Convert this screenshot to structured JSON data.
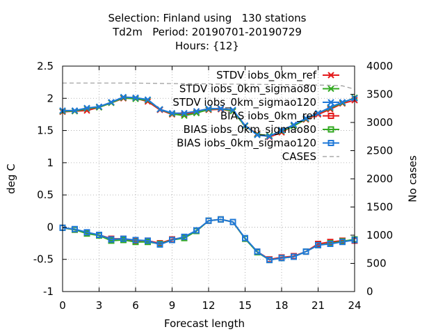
{
  "chart_data": {
    "type": "line",
    "title_lines": [
      "Selection: Finland using   130 stations",
      "Td2m   Period: 20190701-20190729",
      "Hours: {12}"
    ],
    "xlabel": "Forecast length",
    "ylabel": "deg C",
    "y2label": "No cases",
    "xlim": [
      0,
      24
    ],
    "ylim": [
      -1,
      2.5
    ],
    "y2lim": [
      0,
      4000
    ],
    "xticks": [
      0,
      3,
      6,
      9,
      12,
      15,
      18,
      21,
      24
    ],
    "yticks": [
      "-1",
      "-0.5",
      "0",
      "0.5",
      "1",
      "1.5",
      "2",
      "2.5"
    ],
    "y2ticks": [
      "0",
      "500",
      "1000",
      "1500",
      "2000",
      "2500",
      "3000",
      "3500",
      "4000"
    ],
    "grid": true,
    "legend_position": "top-right",
    "x": [
      0,
      1,
      2,
      3,
      4,
      5,
      6,
      7,
      8,
      9,
      10,
      11,
      12,
      13,
      14,
      15,
      16,
      17,
      18,
      19,
      20,
      21,
      22,
      23,
      24
    ],
    "series": [
      {
        "name": "STDV iobs_0km_ref",
        "axis": "y1",
        "color": "#e41a1c",
        "marker": "x",
        "values": [
          1.79,
          1.8,
          1.81,
          1.86,
          1.93,
          2.0,
          2.0,
          1.95,
          1.82,
          1.75,
          1.75,
          1.78,
          1.82,
          1.83,
          1.8,
          1.57,
          1.45,
          1.4,
          1.47,
          1.58,
          1.67,
          1.75,
          1.83,
          1.92,
          1.97
        ]
      },
      {
        "name": "STDV iobs_0km_sigmao80",
        "axis": "y1",
        "color": "#33aa22",
        "marker": "x",
        "values": [
          1.8,
          1.8,
          1.84,
          1.86,
          1.93,
          2.01,
          1.99,
          1.97,
          1.83,
          1.76,
          1.73,
          1.77,
          1.83,
          1.84,
          1.8,
          1.57,
          1.44,
          1.42,
          1.49,
          1.57,
          1.68,
          1.77,
          1.85,
          1.93,
          2.01
        ]
      },
      {
        "name": "STDV iobs_0km_sigmao120",
        "axis": "y1",
        "color": "#1f78d8",
        "marker": "x",
        "values": [
          1.81,
          1.81,
          1.85,
          1.87,
          1.94,
          2.02,
          2.01,
          1.98,
          1.83,
          1.77,
          1.77,
          1.8,
          1.84,
          1.84,
          1.82,
          1.58,
          1.43,
          1.41,
          1.5,
          1.59,
          1.69,
          1.77,
          1.86,
          1.94,
          2.0
        ]
      },
      {
        "name": "BIAS iobs_0km_ref",
        "axis": "y1",
        "color": "#e41a1c",
        "marker": "square",
        "values": [
          -0.01,
          -0.04,
          -0.09,
          -0.12,
          -0.18,
          -0.18,
          -0.21,
          -0.21,
          -0.25,
          -0.19,
          -0.16,
          -0.06,
          0.1,
          0.12,
          0.08,
          -0.18,
          -0.38,
          -0.5,
          -0.47,
          -0.45,
          -0.38,
          -0.26,
          -0.23,
          -0.21,
          -0.21
        ]
      },
      {
        "name": "BIAS iobs_0km_sigmao80",
        "axis": "y1",
        "color": "#33aa22",
        "marker": "square",
        "values": [
          -0.01,
          -0.04,
          -0.1,
          -0.13,
          -0.21,
          -0.2,
          -0.23,
          -0.23,
          -0.26,
          -0.2,
          -0.17,
          -0.06,
          0.1,
          0.12,
          0.08,
          -0.18,
          -0.39,
          -0.51,
          -0.48,
          -0.46,
          -0.38,
          -0.28,
          -0.25,
          -0.22,
          -0.19
        ]
      },
      {
        "name": "BIAS iobs_0km_sigmao120",
        "axis": "y1",
        "color": "#1f78d8",
        "marker": "square",
        "values": [
          -0.01,
          -0.03,
          -0.08,
          -0.12,
          -0.19,
          -0.18,
          -0.2,
          -0.21,
          -0.27,
          -0.2,
          -0.15,
          -0.05,
          0.1,
          0.12,
          0.08,
          -0.17,
          -0.38,
          -0.51,
          -0.48,
          -0.46,
          -0.38,
          -0.28,
          -0.26,
          -0.23,
          -0.2
        ]
      },
      {
        "name": "CASES",
        "axis": "y2",
        "color": "#999999",
        "marker": "none",
        "dashed": true,
        "values": [
          3700,
          3700,
          3700,
          3700,
          3700,
          3700,
          3700,
          3695,
          3692,
          3690,
          3688,
          3686,
          3684,
          3682,
          3680,
          3678,
          3676,
          3674,
          3672,
          3670,
          3668,
          3664,
          3660,
          3650,
          3590
        ]
      }
    ]
  }
}
